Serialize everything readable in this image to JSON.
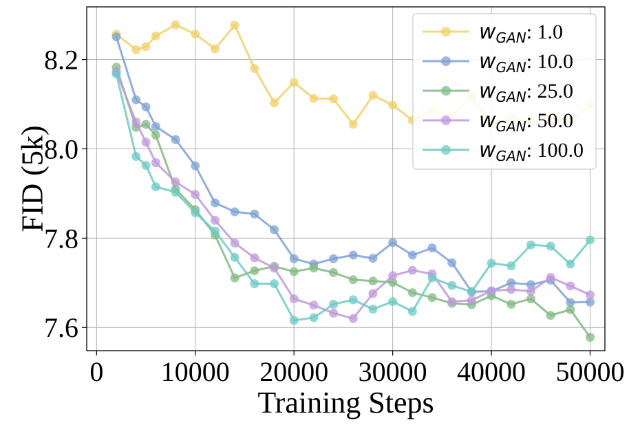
{
  "chart_data": {
    "type": "line",
    "title": "",
    "xlabel": "Training Steps",
    "ylabel": "FID (5k)",
    "xlim": [
      -1000,
      51500
    ],
    "ylim": [
      7.548,
      8.318
    ],
    "xticks": [
      0,
      10000,
      20000,
      30000,
      40000,
      50000
    ],
    "xtick_labels": [
      "0",
      "10000",
      "20000",
      "30000",
      "40000",
      "50000"
    ],
    "yticks": [
      7.6,
      7.8,
      8.0,
      8.2
    ],
    "ytick_labels": [
      "7.6",
      "7.8",
      "8.0",
      "8.2"
    ],
    "grid": true,
    "legend_position": "top-right",
    "legend_prefix": "w",
    "legend_subscript": "GAN",
    "x": [
      2000,
      4000,
      5000,
      6000,
      8000,
      10000,
      12000,
      14000,
      16000,
      18000,
      20000,
      22000,
      24000,
      26000,
      28000,
      30000,
      32000,
      34000,
      36000,
      38000,
      40000,
      42000,
      44000,
      46000,
      48000,
      50000
    ],
    "series": [
      {
        "name": ": 1.0",
        "color": "#f2d06b",
        "x": [
          2000,
          4000,
          5000,
          6000,
          8000,
          10000,
          12000,
          14000,
          16000,
          18000,
          20000,
          22000,
          24000,
          26000,
          28000,
          30000,
          32000,
          34000,
          36000,
          38000,
          40000,
          42000,
          44000,
          46000,
          48000,
          50000
        ],
        "values": [
          8.257,
          8.222,
          8.229,
          8.253,
          8.278,
          8.257,
          8.224,
          8.277,
          8.18,
          8.103,
          8.149,
          8.113,
          8.112,
          8.055,
          8.12,
          8.098,
          8.064,
          8.085,
          8.074,
          8.118,
          8.054,
          8.07,
          8.06,
          8.075,
          8.06,
          8.098
        ]
      },
      {
        "name": ": 10.0",
        "color": "#7ea1d3",
        "x": [
          2000,
          4000,
          5000,
          6000,
          8000,
          10000,
          12000,
          14000,
          16000,
          18000,
          20000,
          22000,
          24000,
          26000,
          28000,
          30000,
          32000,
          34000,
          36000,
          38000,
          40000,
          42000,
          44000,
          46000,
          48000,
          50000
        ],
        "values": [
          8.251,
          8.11,
          8.094,
          8.05,
          8.021,
          7.962,
          7.879,
          7.859,
          7.854,
          7.819,
          7.754,
          7.742,
          7.754,
          7.762,
          7.755,
          7.79,
          7.762,
          7.778,
          7.745,
          7.68,
          7.681,
          7.7,
          7.696,
          7.706,
          7.656,
          7.657
        ]
      },
      {
        "name": ": 25.0",
        "color": "#82b983",
        "x": [
          2000,
          4000,
          5000,
          6000,
          8000,
          10000,
          12000,
          14000,
          16000,
          18000,
          20000,
          22000,
          24000,
          26000,
          28000,
          30000,
          32000,
          34000,
          36000,
          38000,
          40000,
          42000,
          44000,
          46000,
          48000,
          50000
        ],
        "values": [
          8.183,
          8.048,
          8.055,
          8.031,
          7.91,
          7.864,
          7.807,
          7.711,
          7.727,
          7.737,
          7.725,
          7.733,
          7.723,
          7.707,
          7.704,
          7.701,
          7.678,
          7.667,
          7.654,
          7.651,
          7.671,
          7.652,
          7.664,
          7.627,
          7.64,
          7.578
        ]
      },
      {
        "name": ": 50.0",
        "color": "#c098dc",
        "x": [
          2000,
          4000,
          5000,
          6000,
          8000,
          10000,
          12000,
          14000,
          16000,
          18000,
          20000,
          22000,
          24000,
          26000,
          28000,
          30000,
          32000,
          34000,
          36000,
          38000,
          40000,
          42000,
          44000,
          46000,
          48000,
          50000
        ],
        "values": [
          8.173,
          8.06,
          8.015,
          7.969,
          7.926,
          7.898,
          7.84,
          7.789,
          7.756,
          7.733,
          7.664,
          7.65,
          7.632,
          7.62,
          7.676,
          7.716,
          7.728,
          7.72,
          7.658,
          7.661,
          7.682,
          7.685,
          7.681,
          7.712,
          7.693,
          7.673
        ]
      },
      {
        "name": ": 100.0",
        "color": "#6ccac4",
        "x": [
          2000,
          4000,
          5000,
          6000,
          8000,
          10000,
          12000,
          14000,
          16000,
          18000,
          20000,
          22000,
          24000,
          26000,
          28000,
          30000,
          32000,
          34000,
          36000,
          38000,
          40000,
          42000,
          44000,
          46000,
          48000,
          50000
        ],
        "values": [
          8.168,
          7.983,
          7.963,
          7.915,
          7.903,
          7.857,
          7.816,
          7.757,
          7.698,
          7.698,
          7.616,
          7.622,
          7.652,
          7.662,
          7.641,
          7.658,
          7.636,
          7.711,
          7.694,
          7.68,
          7.744,
          7.738,
          7.785,
          7.782,
          7.742,
          7.796
        ]
      }
    ]
  }
}
